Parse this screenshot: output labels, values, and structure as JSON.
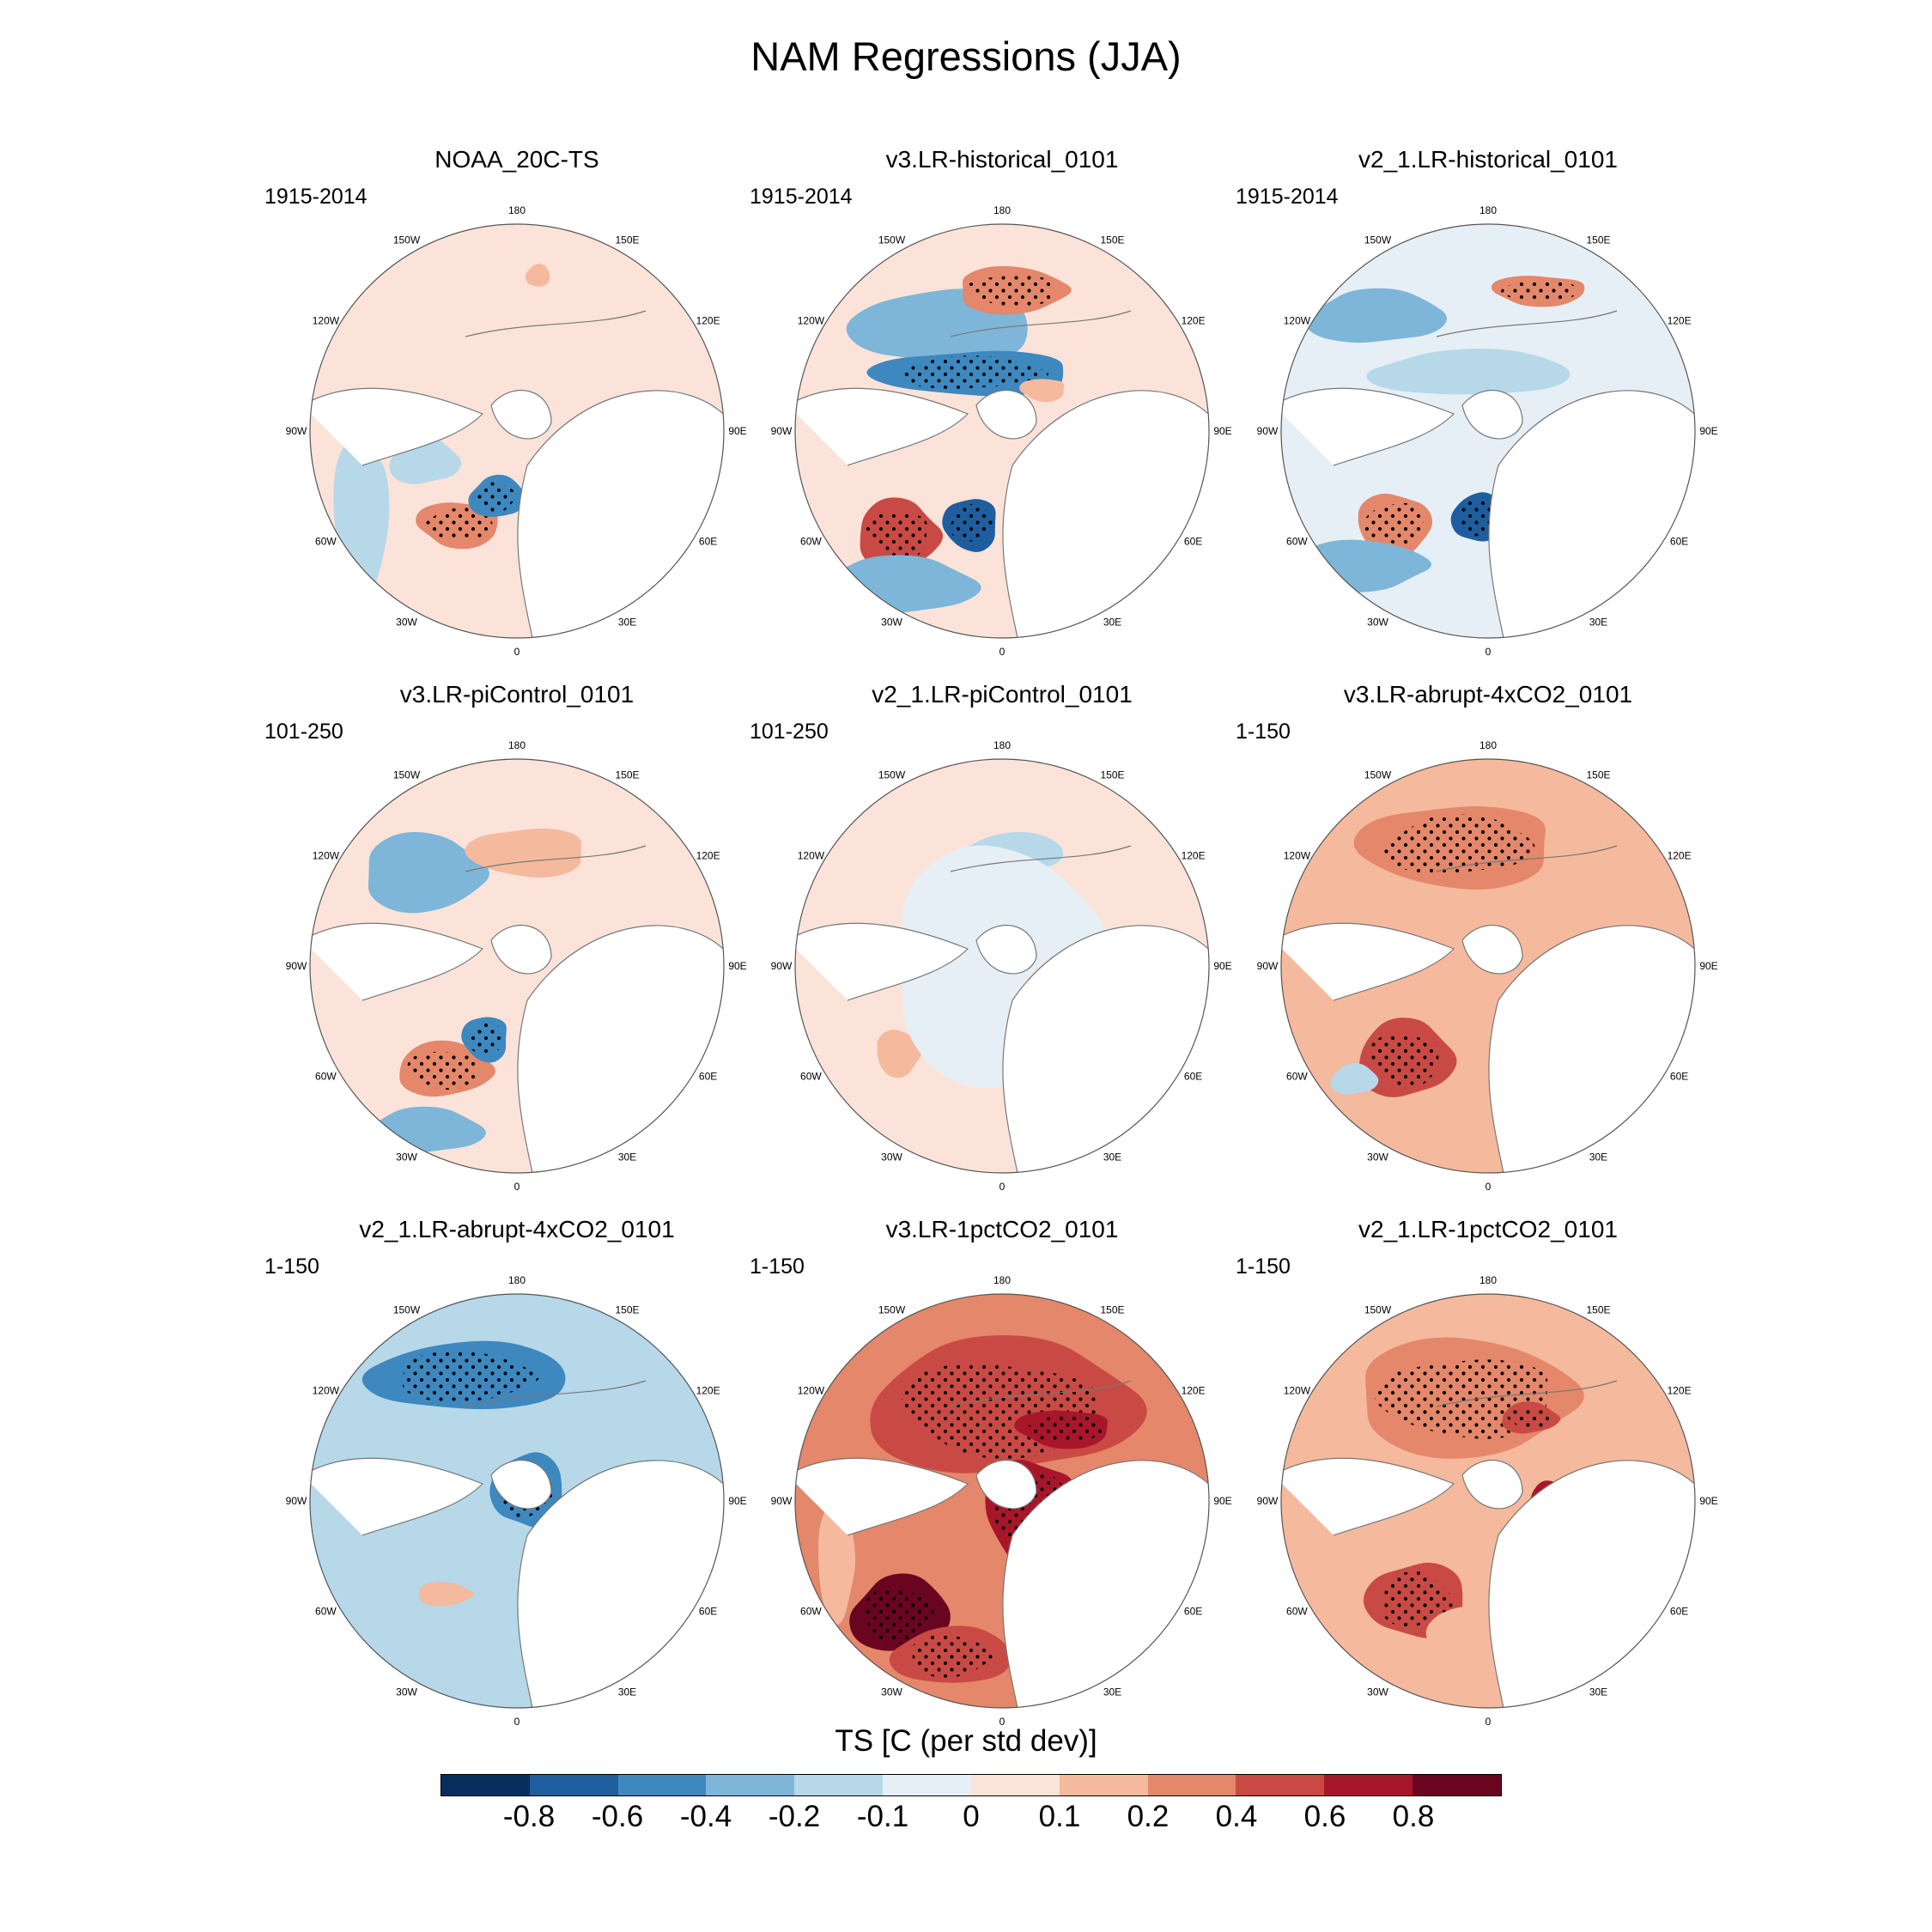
{
  "title": "NAM Regressions (JJA)",
  "panels": [
    {
      "id": "noaa-20c",
      "title": "NOAA_20C-TS",
      "period": "1915-2014",
      "pattern": "obs"
    },
    {
      "id": "v3-hist",
      "title": "v3.LR-historical_0101",
      "period": "1915-2014",
      "pattern": "hist"
    },
    {
      "id": "v21-hist",
      "title": "v2_1.LR-historical_0101",
      "period": "1915-2014",
      "pattern": "hist2"
    },
    {
      "id": "v3-picontrol",
      "title": "v3.LR-piControl_0101",
      "period": "101-250",
      "pattern": "pic"
    },
    {
      "id": "v21-picontrol",
      "title": "v2_1.LR-piControl_0101",
      "period": "101-250",
      "pattern": "pic2"
    },
    {
      "id": "v3-abrupt",
      "title": "v3.LR-abrupt-4xCO2_0101",
      "period": "1-150",
      "pattern": "warm"
    },
    {
      "id": "v21-abrupt",
      "title": "v2_1.LR-abrupt-4xCO2_0101",
      "period": "1-150",
      "pattern": "cool"
    },
    {
      "id": "v3-1pct",
      "title": "v3.LR-1pctCO2_0101",
      "period": "1-150",
      "pattern": "hot"
    },
    {
      "id": "v21-1pct",
      "title": "v2_1.LR-1pctCO2_0101",
      "period": "1-150",
      "pattern": "warm2"
    }
  ],
  "longitude_labels": [
    "180",
    "150E",
    "120E",
    "90E",
    "60E",
    "30E",
    "0",
    "30W",
    "60W",
    "90W",
    "120W",
    "150W"
  ],
  "colorbar": {
    "title": "TS [C (per std dev)]",
    "tick_labels": [
      "-0.8",
      "-0.6",
      "-0.4",
      "-0.2",
      "-0.1",
      "0",
      "0.1",
      "0.2",
      "0.4",
      "0.6",
      "0.8"
    ],
    "colors": [
      "#062f5f",
      "#1f5e9e",
      "#3d88bf",
      "#7db6d8",
      "#b6d8e9",
      "#e6eff5",
      "#fbe3d9",
      "#f5b99d",
      "#e4876a",
      "#c94a44",
      "#a8162a",
      "#6a0520"
    ]
  }
}
